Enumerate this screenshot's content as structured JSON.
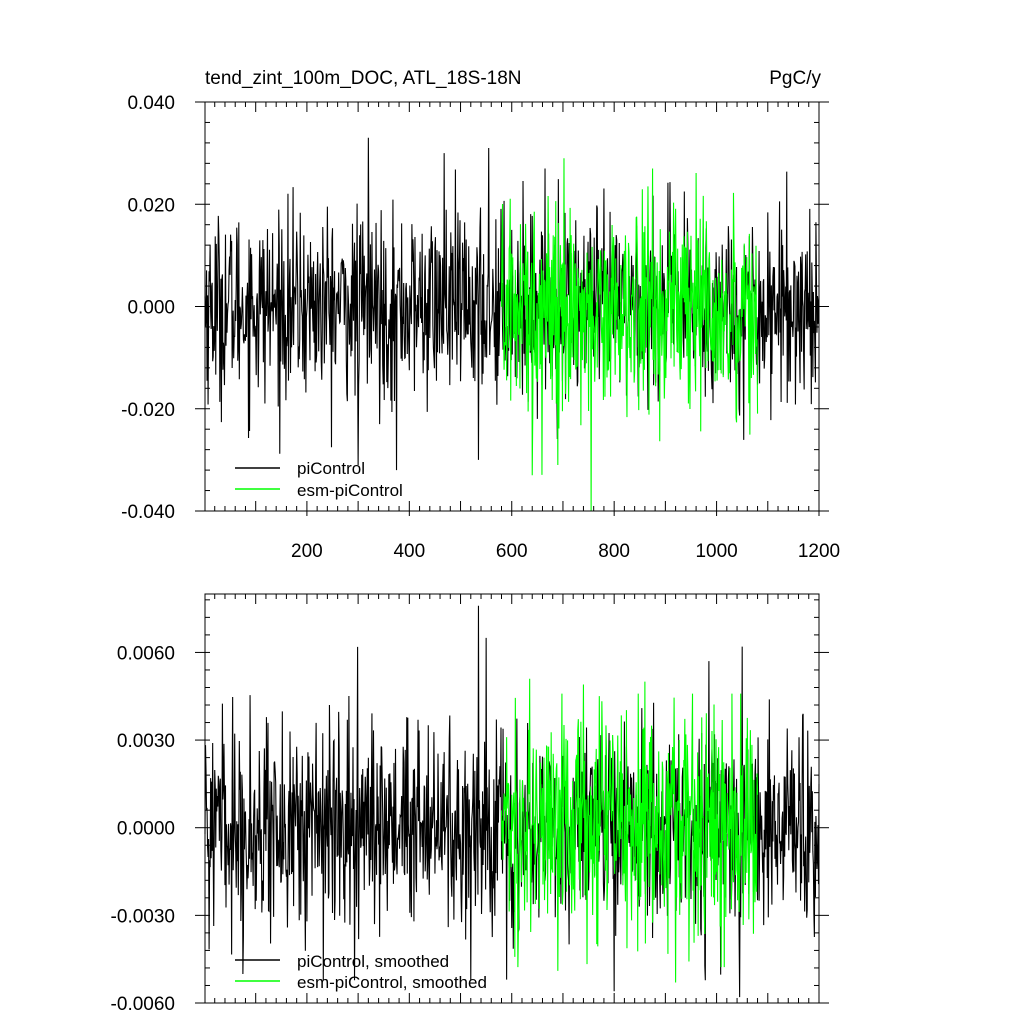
{
  "chart_data": [
    {
      "type": "line",
      "title": "tend_zint_100m_DOC, ATL_18S-18N",
      "units": "PgC/y",
      "xlim": [
        1,
        1200
      ],
      "ylim": [
        -0.04,
        0.04
      ],
      "x_ticks": [
        200,
        400,
        600,
        800,
        1000,
        1200
      ],
      "x_tick_labels": [
        "200",
        "400",
        "600",
        "800",
        "1000",
        "1200"
      ],
      "y_ticks": [
        -0.04,
        -0.02,
        0.0,
        0.02,
        0.04
      ],
      "y_tick_labels": [
        "-0.040",
        "-0.020",
        "0.000",
        "0.020",
        "0.040"
      ],
      "legend_position": "bottom-left",
      "series": [
        {
          "name": "piControl",
          "color": "#000000",
          "x_range": [
            1,
            1200
          ],
          "mean": 0.0,
          "typical_spread": 0.009,
          "max": 0.033,
          "min": -0.032,
          "extremes": [
            [
              320,
              0.033
            ],
            [
              468,
              0.03
            ],
            [
              555,
              0.031
            ],
            [
              375,
              -0.032
            ],
            [
              300,
              -0.031
            ],
            [
              535,
              -0.03
            ]
          ]
        },
        {
          "name": "esm-piControl",
          "color": "#00ff00",
          "x_range": [
            580,
            1080
          ],
          "mean": 0.0,
          "typical_spread": 0.01,
          "max": 0.029,
          "min": -0.04,
          "extremes": [
            [
              702,
              0.029
            ],
            [
              755,
              -0.04
            ],
            [
              640,
              -0.033
            ],
            [
              875,
              0.027
            ],
            [
              690,
              -0.031
            ]
          ]
        }
      ]
    },
    {
      "type": "line",
      "xlim": [
        1,
        1200
      ],
      "ylim": [
        -0.006,
        0.008
      ],
      "y_ticks": [
        -0.006,
        -0.003,
        0.0,
        0.003,
        0.006
      ],
      "y_tick_labels": [
        "-0.0060",
        "-0.0030",
        "0.0000",
        "0.0030",
        "0.0060"
      ],
      "legend_position": "bottom-left",
      "series": [
        {
          "name": "piControl, smoothed",
          "color": "#000000",
          "x_range": [
            1,
            1200
          ],
          "mean": 0.0,
          "typical_spread": 0.0017,
          "max": 0.0076,
          "min": -0.0058,
          "extremes": [
            [
              535,
              0.0076
            ],
            [
              1050,
              0.0062
            ],
            [
              550,
              0.0065
            ],
            [
              1045,
              -0.0058
            ],
            [
              800,
              -0.0056
            ],
            [
              590,
              -0.0052
            ]
          ]
        },
        {
          "name": "esm-piControl, smoothed",
          "color": "#00ff00",
          "x_range": [
            580,
            1080
          ],
          "mean": 0.0,
          "typical_spread": 0.0019,
          "max": 0.0051,
          "min": -0.0053,
          "extremes": [
            [
              635,
              0.0051
            ],
            [
              860,
              0.005
            ],
            [
              690,
              -0.0049
            ],
            [
              920,
              -0.0053
            ],
            [
              740,
              0.0049
            ]
          ]
        }
      ]
    }
  ]
}
